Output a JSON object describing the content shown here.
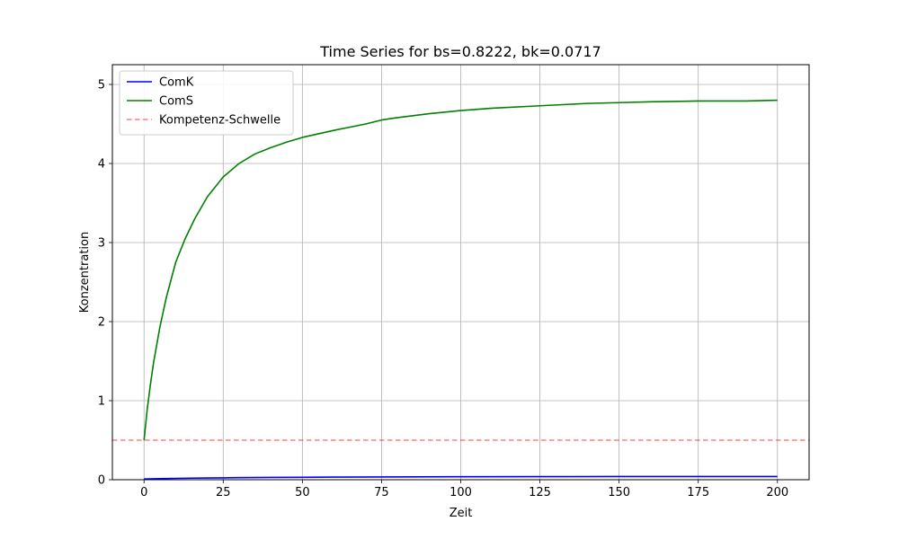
{
  "chart_data": {
    "type": "line",
    "title": "Time Series for bs=0.8222, bk=0.0717",
    "xlabel": "Zeit",
    "ylabel": "Konzentration",
    "xlim": [
      -10,
      210
    ],
    "ylim": [
      0,
      5.25
    ],
    "xticks": [
      0,
      25,
      50,
      75,
      100,
      125,
      150,
      175,
      200
    ],
    "yticks": [
      0,
      1,
      2,
      3,
      4,
      5
    ],
    "grid": true,
    "legend_position": "top-left",
    "series": [
      {
        "name": "ComK",
        "color": "#0000ff",
        "style": "solid",
        "x": [
          0,
          5,
          10,
          15,
          20,
          25,
          30,
          40,
          50,
          60,
          75,
          100,
          125,
          150,
          175,
          200
        ],
        "y": [
          0.01,
          0.014,
          0.017,
          0.02,
          0.022,
          0.024,
          0.026,
          0.029,
          0.031,
          0.033,
          0.035,
          0.038,
          0.039,
          0.04,
          0.04,
          0.041
        ]
      },
      {
        "name": "ComS",
        "color": "#008000",
        "style": "solid",
        "x": [
          0,
          1,
          2,
          3,
          5,
          7,
          10,
          13,
          16,
          20,
          25,
          30,
          35,
          40,
          45,
          50,
          60,
          70,
          75,
          80,
          90,
          100,
          110,
          125,
          140,
          150,
          160,
          175,
          190,
          200
        ],
        "y": [
          0.5,
          0.89,
          1.2,
          1.48,
          1.93,
          2.3,
          2.75,
          3.05,
          3.3,
          3.58,
          3.83,
          4.0,
          4.12,
          4.2,
          4.27,
          4.33,
          4.42,
          4.5,
          4.55,
          4.58,
          4.63,
          4.67,
          4.7,
          4.73,
          4.76,
          4.77,
          4.78,
          4.79,
          4.79,
          4.8
        ]
      },
      {
        "name": "Kompetenz-Schwelle",
        "color": "#ff0000",
        "style": "dashed",
        "opacity": 0.5,
        "constant": 0.5
      }
    ]
  }
}
